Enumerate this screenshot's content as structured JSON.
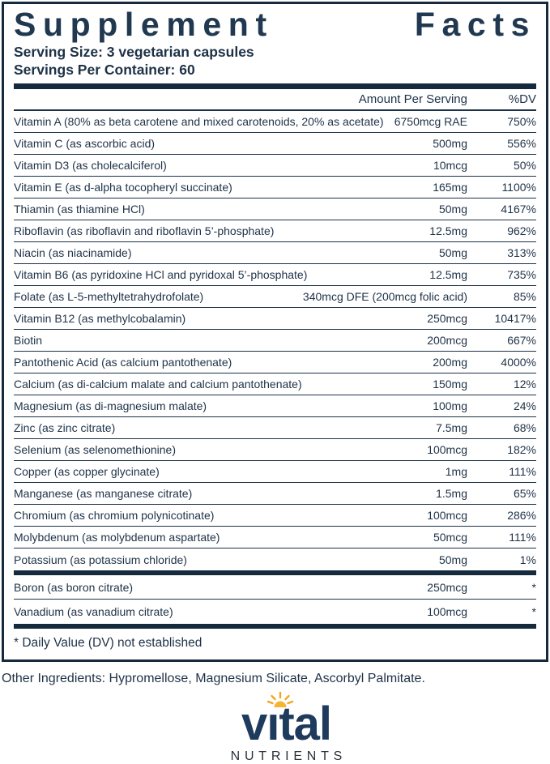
{
  "colors": {
    "navy_text": "#1e3247",
    "rule_ink": "#152a3d",
    "brand_navy": "#1e3a5c",
    "sun_gold": "#f2a71b"
  },
  "label": {
    "title": "Supplement Facts",
    "title_word_1": "Supplement",
    "title_word_2": "Facts",
    "serving_size": "Serving Size: 3 vegetarian capsules",
    "servings_per_container": "Servings Per Container: 60",
    "columns": {
      "amount": "Amount Per Serving",
      "dv": "%DV"
    },
    "rows": [
      {
        "name": "Vitamin A (80% as beta carotene and mixed carotenoids, 20% as acetate)",
        "amount": "6750mcg RAE",
        "dv": "750%"
      },
      {
        "name": "Vitamin C (as ascorbic acid)",
        "amount": "500mg",
        "dv": "556%"
      },
      {
        "name": "Vitamin D3 (as cholecalciferol)",
        "amount": "10mcg",
        "dv": "50%"
      },
      {
        "name": "Vitamin E (as d-alpha tocopheryl succinate)",
        "amount": "165mg",
        "dv": "1100%"
      },
      {
        "name": "Thiamin (as thiamine HCl)",
        "amount": "50mg",
        "dv": "4167%"
      },
      {
        "name": "Riboflavin (as riboflavin and riboflavin 5’-phosphate)",
        "amount": "12.5mg",
        "dv": "962%"
      },
      {
        "name": "Niacin (as niacinamide)",
        "amount": "50mg",
        "dv": "313%"
      },
      {
        "name": "Vitamin B6 (as pyridoxine HCl and pyridoxal 5’-phosphate)",
        "amount": "12.5mg",
        "dv": "735%"
      },
      {
        "name": "Folate (as L-5-methyltetrahydrofolate)",
        "amount": "340mcg DFE (200mcg folic acid)",
        "dv": "85%"
      },
      {
        "name": "Vitamin B12 (as methylcobalamin)",
        "amount": "250mcg",
        "dv": "10417%"
      },
      {
        "name": "Biotin",
        "amount": "200mcg",
        "dv": "667%"
      },
      {
        "name": "Pantothenic Acid (as calcium pantothenate)",
        "amount": "200mg",
        "dv": "4000%"
      },
      {
        "name": "Calcium (as di-calcium malate and calcium pantothenate)",
        "amount": "150mg",
        "dv": "12%"
      },
      {
        "name": "Magnesium (as di-magnesium malate)",
        "amount": "100mg",
        "dv": "24%"
      },
      {
        "name": "Zinc (as zinc citrate)",
        "amount": "7.5mg",
        "dv": "68%"
      },
      {
        "name": "Selenium (as selenomethionine)",
        "amount": "100mcg",
        "dv": "182%"
      },
      {
        "name": "Copper (as copper glycinate)",
        "amount": "1mg",
        "dv": "111%"
      },
      {
        "name": "Manganese (as manganese citrate)",
        "amount": "1.5mg",
        "dv": "65%"
      },
      {
        "name": "Chromium (as chromium polynicotinate)",
        "amount": "100mcg",
        "dv": "286%"
      },
      {
        "name": "Molybdenum (as molybdenum aspartate)",
        "amount": "50mcg",
        "dv": "111%"
      },
      {
        "name": "Potassium (as potassium chloride)",
        "amount": "50mg",
        "dv": "1%"
      }
    ],
    "secondary_rows": [
      {
        "name": "Boron (as boron citrate)",
        "amount": "250mcg",
        "dv": "*"
      },
      {
        "name": "Vanadium (as vanadium citrate)",
        "amount": "100mcg",
        "dv": "*"
      }
    ],
    "footnote": "* Daily Value (DV) not established"
  },
  "other_ingredients": "Other Ingredients: Hypromellose, Magnesium Silicate, Ascorbyl Palmitate.",
  "brand": {
    "name": "vital",
    "name_display": "vıtal",
    "subtitle": "NUTRIENTS"
  }
}
